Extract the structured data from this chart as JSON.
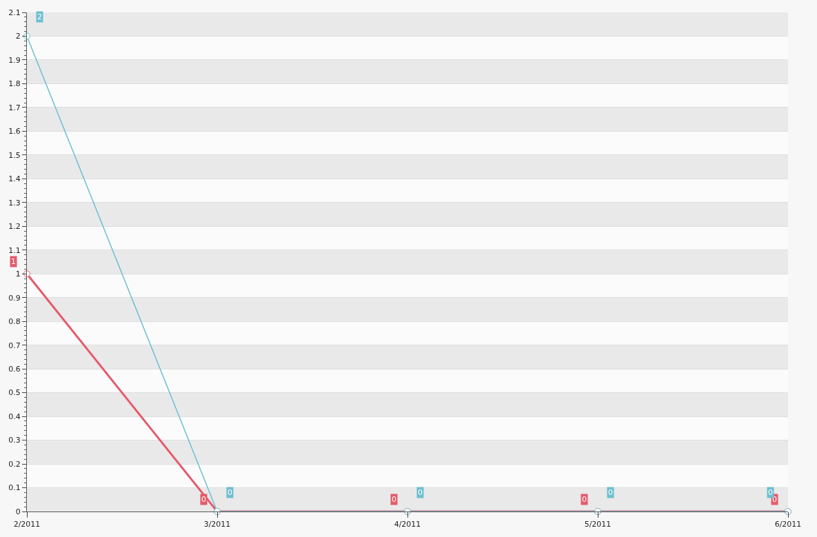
{
  "chart_data": {
    "type": "line",
    "categories": [
      "2/2011",
      "3/2011",
      "4/2011",
      "5/2011",
      "6/2011"
    ],
    "series": [
      {
        "color": "#6cbfd0",
        "values": [
          2,
          0,
          0,
          0,
          0
        ]
      },
      {
        "color": "#e45b6b",
        "values": [
          1,
          0,
          0,
          0,
          0
        ]
      }
    ],
    "ylim": [
      0,
      2.1
    ],
    "yticks": [
      0,
      0.1,
      0.2,
      0.3,
      0.4,
      0.5,
      0.6,
      0.7,
      0.8,
      0.9,
      1,
      1.1,
      1.2,
      1.3,
      1.4,
      1.5,
      1.6,
      1.7,
      1.8,
      1.9,
      2,
      2.1
    ],
    "grid": "y",
    "marker": "circle",
    "line_style": "solid",
    "data_labels": true
  }
}
